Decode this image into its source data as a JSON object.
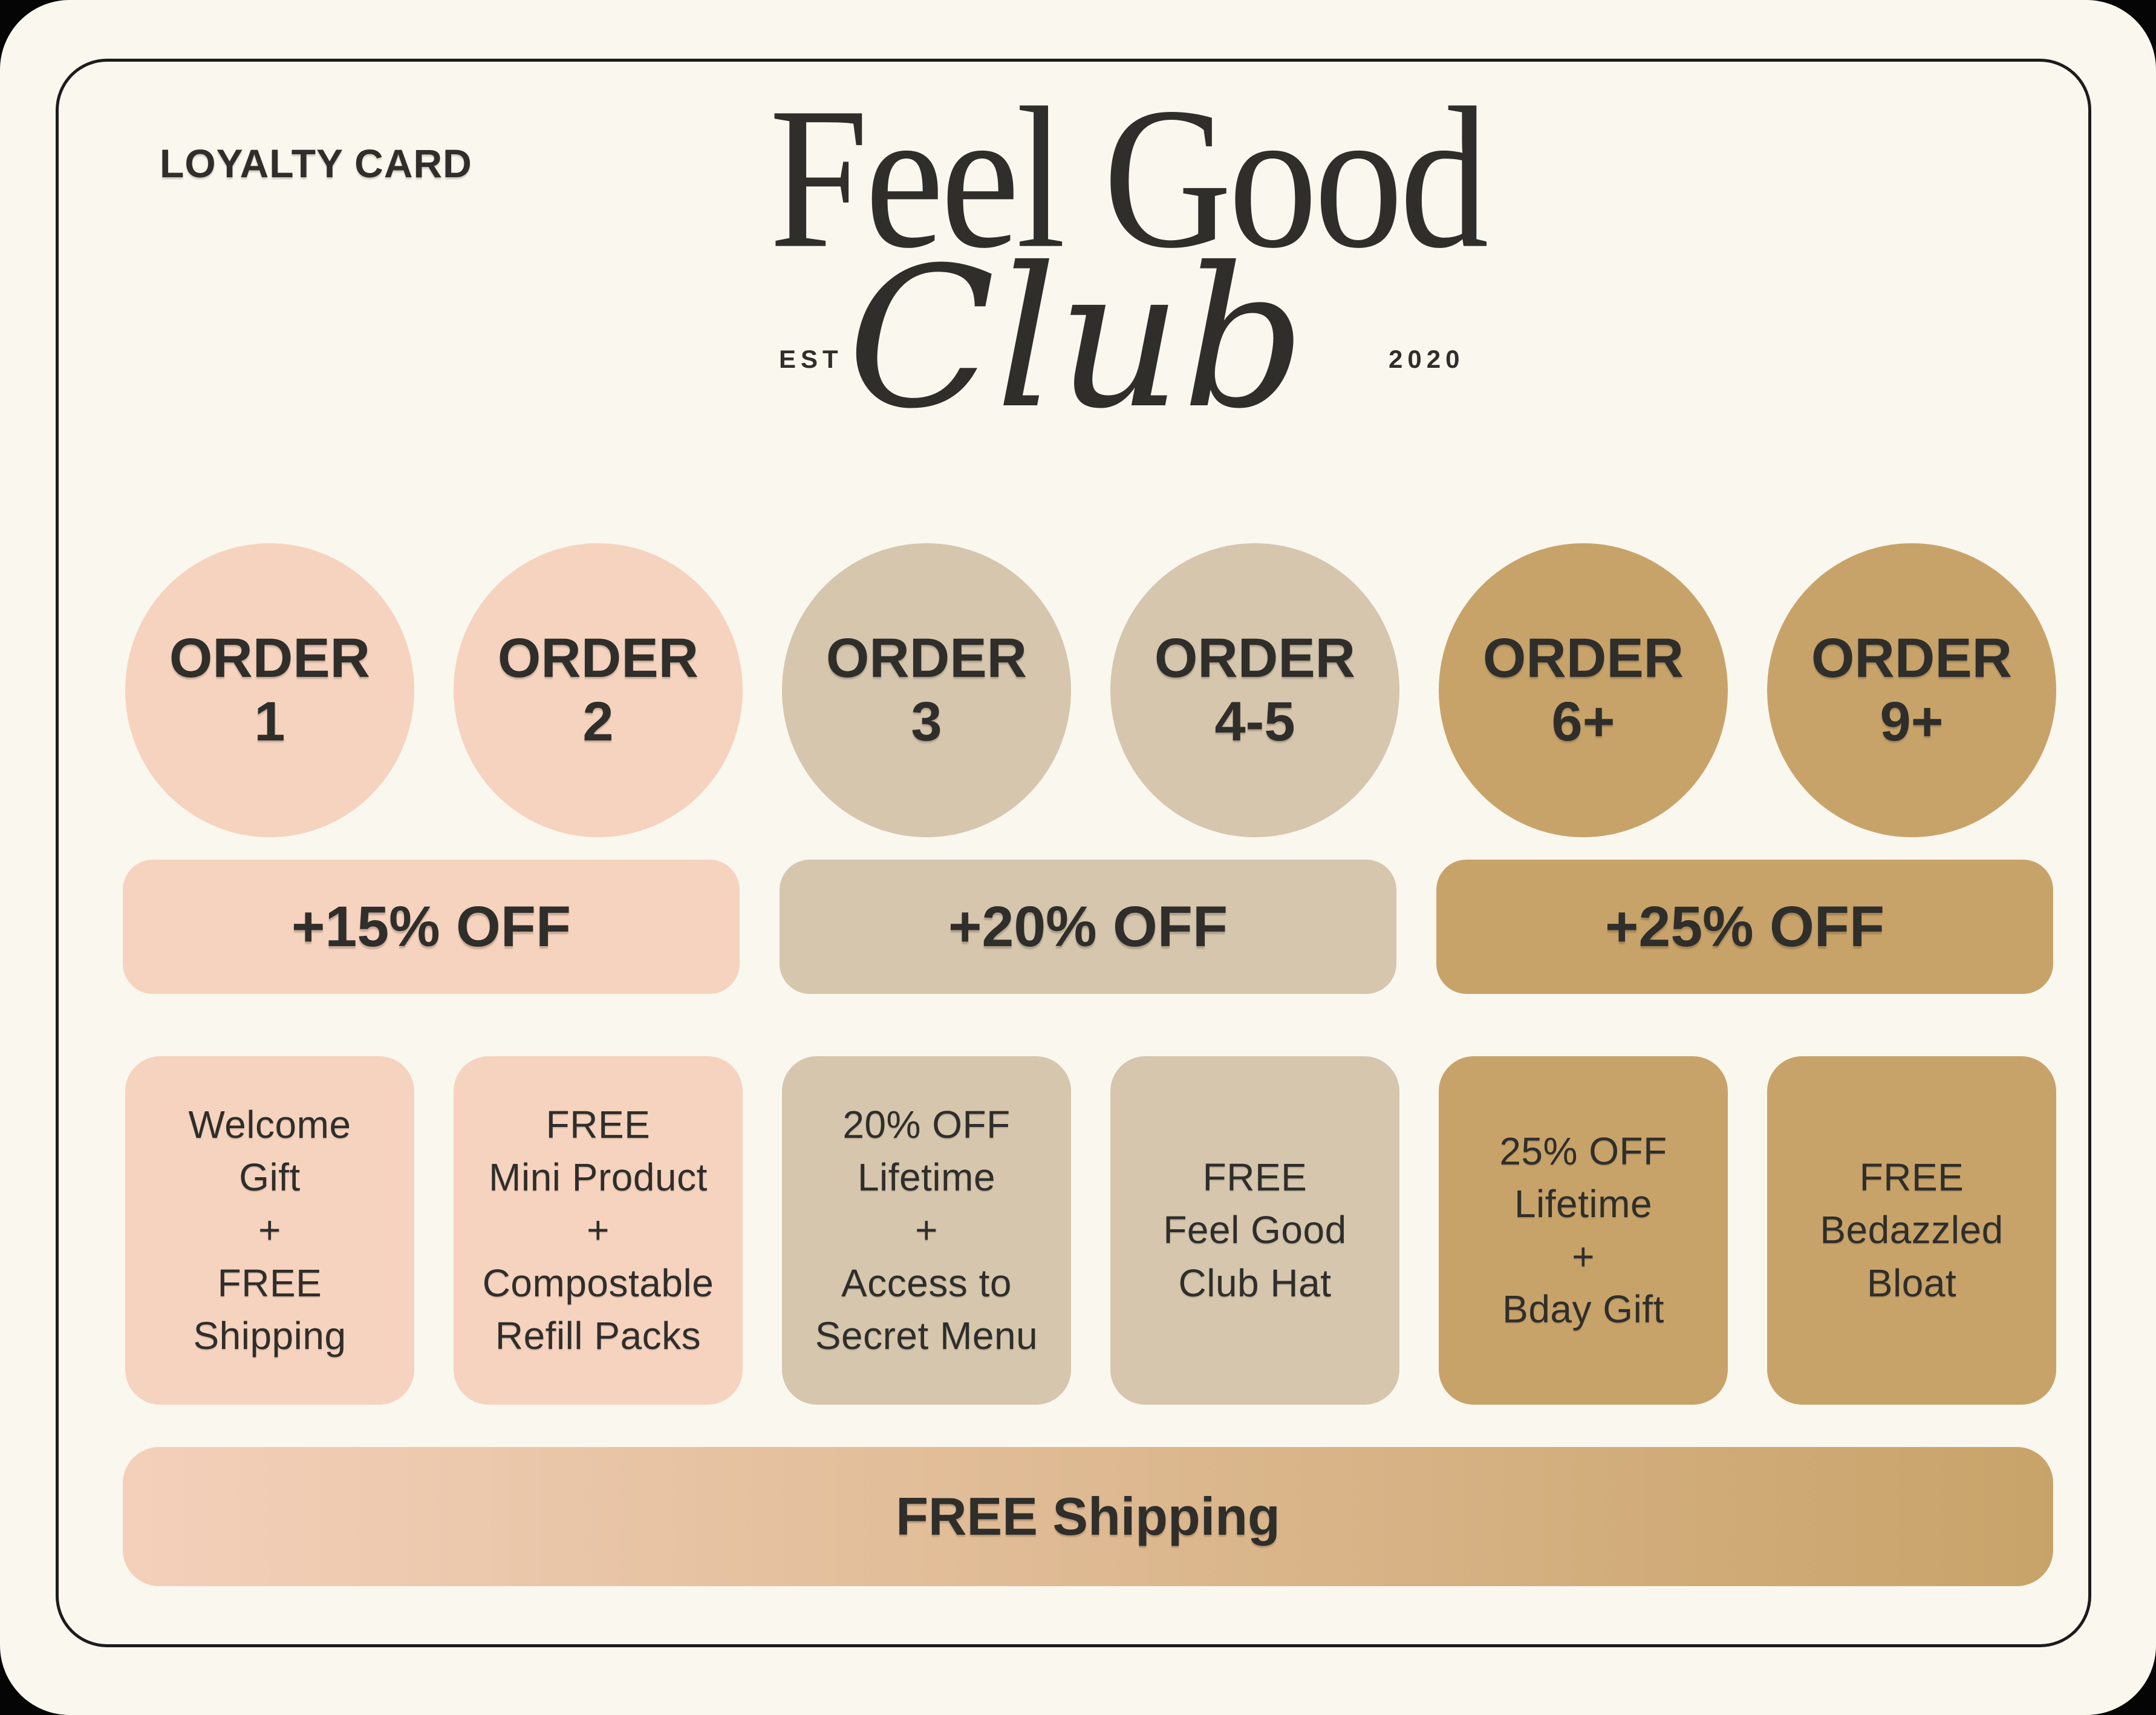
{
  "page": {
    "backdrop": "#050505",
    "card_bg": "#FAF7EE",
    "border": "#1C1C1C",
    "text": "#2F2E2B"
  },
  "colors": {
    "pink": "#F6D3BE",
    "tan": "#D5C6AD",
    "gold": "#C8A369",
    "gradient_left": "#F4D0BB",
    "gradient_right": "#C8A369"
  },
  "header": {
    "label": "LOYALTY CARD",
    "brand_name": "Feel Good",
    "brand_script": "Club",
    "est": "EST",
    "year": "2020"
  },
  "tiers": [
    {
      "word": "ORDER",
      "value": "1",
      "color": "pink"
    },
    {
      "word": "ORDER",
      "value": "2",
      "color": "pink"
    },
    {
      "word": "ORDER",
      "value": "3",
      "color": "tan"
    },
    {
      "word": "ORDER",
      "value": "4-5",
      "color": "tan"
    },
    {
      "word": "ORDER",
      "value": "6+",
      "color": "gold"
    },
    {
      "word": "ORDER",
      "value": "9+",
      "color": "gold"
    }
  ],
  "discounts": [
    {
      "label": "+15% OFF",
      "color": "pink"
    },
    {
      "label": "+20% OFF",
      "color": "tan"
    },
    {
      "label": "+25% OFF",
      "color": "gold"
    }
  ],
  "rewards": [
    {
      "lines": [
        "Welcome",
        "Gift",
        "+",
        "FREE",
        "Shipping"
      ],
      "color": "pink"
    },
    {
      "lines": [
        "FREE",
        "Mini Product",
        "+",
        "Compostable",
        "Refill Packs"
      ],
      "color": "pink"
    },
    {
      "lines": [
        "20% OFF",
        "Lifetime",
        "+",
        "Access to",
        "Secret Menu"
      ],
      "color": "tan"
    },
    {
      "lines": [
        "FREE",
        "Feel Good",
        "Club Hat"
      ],
      "color": "tan"
    },
    {
      "lines": [
        "25% OFF",
        "Lifetime",
        "+",
        "Bday Gift"
      ],
      "color": "gold"
    },
    {
      "lines": [
        "FREE",
        "Bedazzled",
        "Bloat"
      ],
      "color": "gold"
    }
  ],
  "footer": {
    "label": "FREE Shipping"
  }
}
